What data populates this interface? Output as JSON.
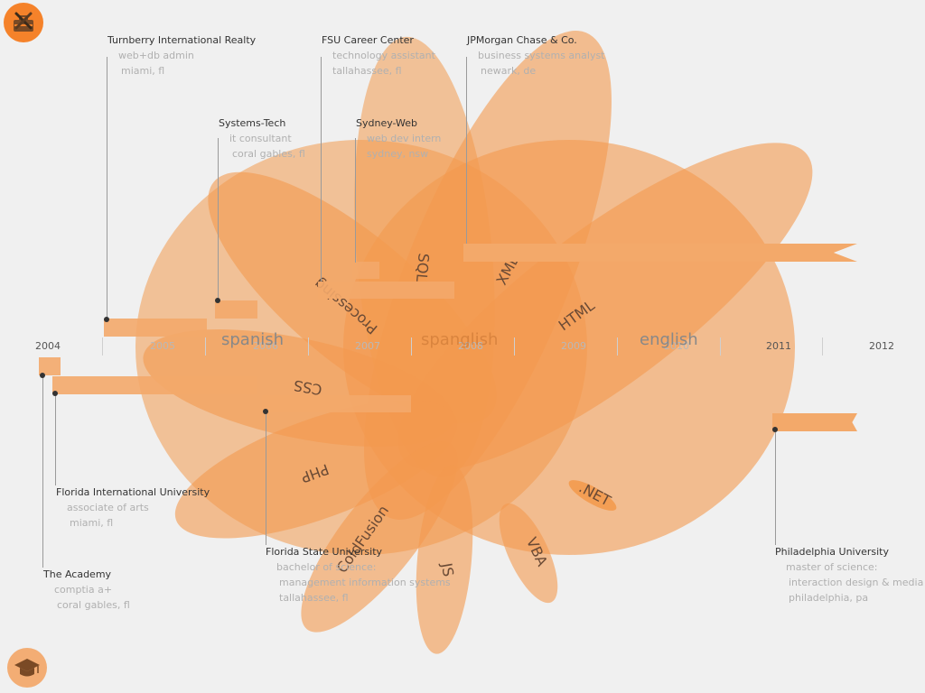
{
  "timeline": {
    "years": [
      "2004",
      "2005",
      "2006",
      "2007",
      "2008",
      "2009",
      "2010",
      "2011",
      "2012"
    ]
  },
  "languages": {
    "spanish": "spanish",
    "spanglish": "spanglish",
    "english": "english"
  },
  "skills": {
    "processing": "Processing",
    "sql": "SQL",
    "xml": "XML",
    "html": "HTML",
    "css": "CSS",
    "php": "PHP",
    "coldfusion": "ColdFusion",
    "js": "JS",
    "vba": "VBA",
    "dotnet": ".NET"
  },
  "work": [
    {
      "org": "Turnberry International Realty",
      "role": "web+db admin",
      "place": "miami, fl"
    },
    {
      "org": "FSU Career Center",
      "role": "technology assistant",
      "place": "tallahassee, fl"
    },
    {
      "org": "JPMorgan Chase & Co.",
      "role": "business systems analyst",
      "place": "newark, de"
    },
    {
      "org": "Systems-Tech",
      "role": "it consultant",
      "place": "coral gables, fl"
    },
    {
      "org": "Sydney-Web",
      "role": "web dev intern",
      "place": "sydney, nsw"
    }
  ],
  "education": [
    {
      "org": "Florida International University",
      "degree": "associate of arts",
      "place": "miami, fl"
    },
    {
      "org": "The Academy",
      "degree": "comptia a+",
      "place": "coral gables, fl"
    },
    {
      "org": "Florida State University",
      "degree": "bachelor of science:",
      "field": "management information systems",
      "place": "tallahassee, fl"
    },
    {
      "org": "Philadelphia University",
      "degree": "master of science:",
      "field": "interaction design & media",
      "place": "philadelphia, pa"
    }
  ],
  "icons": {
    "top": "tools-briefcase-icon",
    "bottom": "graduation-cap-icon"
  },
  "colors": {
    "background": "#f0f0f0",
    "accent": "#f5822a",
    "petal": "#f39a4e",
    "bar": "#f3a96a"
  }
}
